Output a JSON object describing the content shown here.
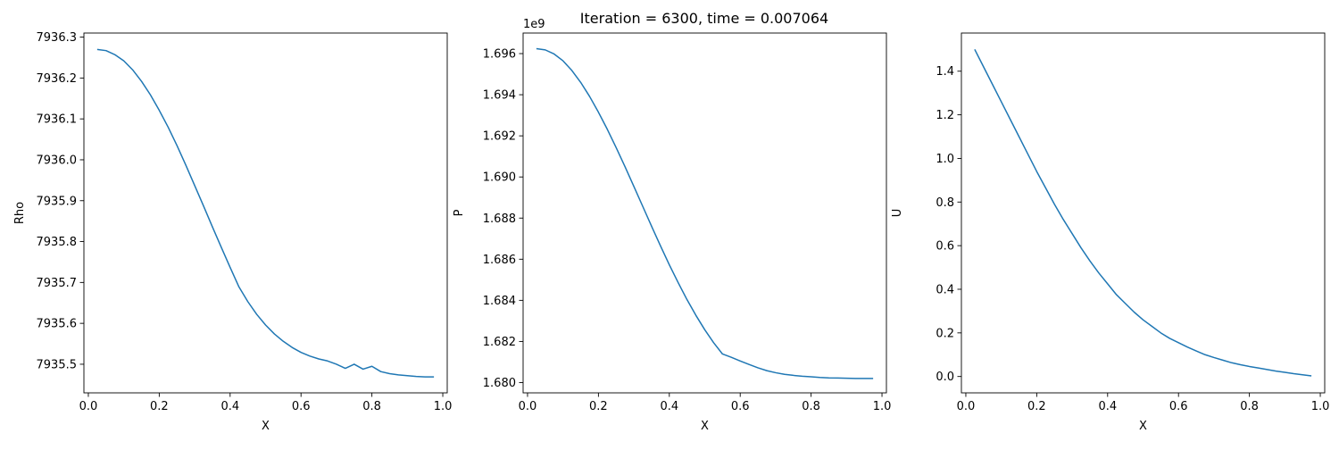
{
  "figure": {
    "suptitle": "Iteration = 6300, time = 0.007064"
  },
  "chart_data": [
    {
      "type": "line",
      "title": "",
      "xlabel": "X",
      "ylabel": "Rho",
      "xlim": [
        -0.0125,
        1.0125
      ],
      "ylim": [
        7935.43,
        7936.31
      ],
      "xticks": [
        "0.0",
        "0.2",
        "0.4",
        "0.6",
        "0.8",
        "1.0"
      ],
      "yticks": [
        "7935.5",
        "7935.6",
        "7935.7",
        "7935.8",
        "7935.9",
        "7936.0",
        "7936.1",
        "7936.2",
        "7936.3"
      ],
      "offset_label": "",
      "grid": false,
      "color": "#1f77b4",
      "series": [
        {
          "x": [
            0.025,
            0.05,
            0.075,
            0.1,
            0.125,
            0.15,
            0.175,
            0.2,
            0.225,
            0.25,
            0.275,
            0.3,
            0.325,
            0.35,
            0.375,
            0.4,
            0.425,
            0.45,
            0.475,
            0.5,
            0.525,
            0.55,
            0.575,
            0.6,
            0.625,
            0.65,
            0.675,
            0.7,
            0.725,
            0.75,
            0.775,
            0.8,
            0.825,
            0.85,
            0.875,
            0.9,
            0.925,
            0.95,
            0.975
          ],
          "y": [
            7936.27,
            7936.267,
            7936.257,
            7936.242,
            7936.22,
            7936.192,
            7936.159,
            7936.121,
            7936.08,
            7936.035,
            7935.987,
            7935.937,
            7935.887,
            7935.836,
            7935.786,
            7935.737,
            7935.689,
            7935.653,
            7935.622,
            7935.596,
            7935.574,
            7935.556,
            7935.541,
            7935.529,
            7935.52,
            7935.513,
            7935.508,
            7935.5,
            7935.49,
            7935.5,
            7935.488,
            7935.495,
            7935.482,
            7935.477,
            7935.474,
            7935.472,
            7935.47,
            7935.469,
            7935.469
          ]
        }
      ]
    },
    {
      "type": "line",
      "title": "",
      "xlabel": "X",
      "ylabel": "P",
      "xlim": [
        -0.0125,
        1.0125
      ],
      "ylim": [
        1.6795,
        1.697
      ],
      "xticks": [
        "0.0",
        "0.2",
        "0.4",
        "0.6",
        "0.8",
        "1.0"
      ],
      "yticks": [
        "1.680",
        "1.682",
        "1.684",
        "1.686",
        "1.688",
        "1.690",
        "1.692",
        "1.694",
        "1.696"
      ],
      "offset_label": "1e9",
      "grid": false,
      "color": "#1f77b4",
      "series": [
        {
          "x": [
            0.025,
            0.05,
            0.075,
            0.1,
            0.125,
            0.15,
            0.175,
            0.2,
            0.225,
            0.25,
            0.275,
            0.3,
            0.325,
            0.35,
            0.375,
            0.4,
            0.425,
            0.45,
            0.475,
            0.5,
            0.525,
            0.55,
            0.575,
            0.6,
            0.625,
            0.65,
            0.675,
            0.7,
            0.725,
            0.75,
            0.775,
            0.8,
            0.825,
            0.85,
            0.875,
            0.9,
            0.925,
            0.95,
            0.975
          ],
          "y": [
            1.69624,
            1.69618,
            1.69598,
            1.69565,
            1.69518,
            1.6946,
            1.69392,
            1.69315,
            1.69232,
            1.69143,
            1.6905,
            1.68954,
            1.68857,
            1.6876,
            1.68665,
            1.68573,
            1.68486,
            1.68403,
            1.68327,
            1.68257,
            1.68194,
            1.68139,
            1.68123,
            1.68105,
            1.68088,
            1.68072,
            1.68058,
            1.68048,
            1.6804,
            1.68035,
            1.68031,
            1.68028,
            1.68025,
            1.68023,
            1.68022,
            1.68021,
            1.6802,
            1.6802,
            1.6802
          ]
        }
      ]
    },
    {
      "type": "line",
      "title": "",
      "xlabel": "X",
      "ylabel": "U",
      "xlim": [
        -0.0125,
        1.0125
      ],
      "ylim": [
        -0.075,
        1.575
      ],
      "xticks": [
        "0.0",
        "0.2",
        "0.4",
        "0.6",
        "0.8",
        "1.0"
      ],
      "yticks": [
        "0.0",
        "0.2",
        "0.4",
        "0.6",
        "0.8",
        "1.0",
        "1.2",
        "1.4"
      ],
      "offset_label": "",
      "grid": false,
      "color": "#1f77b4",
      "series": [
        {
          "x": [
            0.025,
            0.05,
            0.075,
            0.1,
            0.125,
            0.15,
            0.175,
            0.2,
            0.225,
            0.25,
            0.275,
            0.3,
            0.325,
            0.35,
            0.375,
            0.4,
            0.425,
            0.45,
            0.475,
            0.5,
            0.525,
            0.55,
            0.575,
            0.6,
            0.625,
            0.65,
            0.675,
            0.7,
            0.725,
            0.75,
            0.775,
            0.8,
            0.825,
            0.85,
            0.875,
            0.9,
            0.925,
            0.95,
            0.975
          ],
          "y": [
            1.5,
            1.42,
            1.34,
            1.26,
            1.18,
            1.1,
            1.02,
            0.94,
            0.865,
            0.79,
            0.72,
            0.655,
            0.59,
            0.53,
            0.475,
            0.425,
            0.375,
            0.335,
            0.295,
            0.26,
            0.23,
            0.2,
            0.175,
            0.155,
            0.135,
            0.117,
            0.1,
            0.087,
            0.075,
            0.063,
            0.054,
            0.046,
            0.039,
            0.032,
            0.025,
            0.019,
            0.013,
            0.008,
            0.003
          ]
        }
      ]
    }
  ]
}
